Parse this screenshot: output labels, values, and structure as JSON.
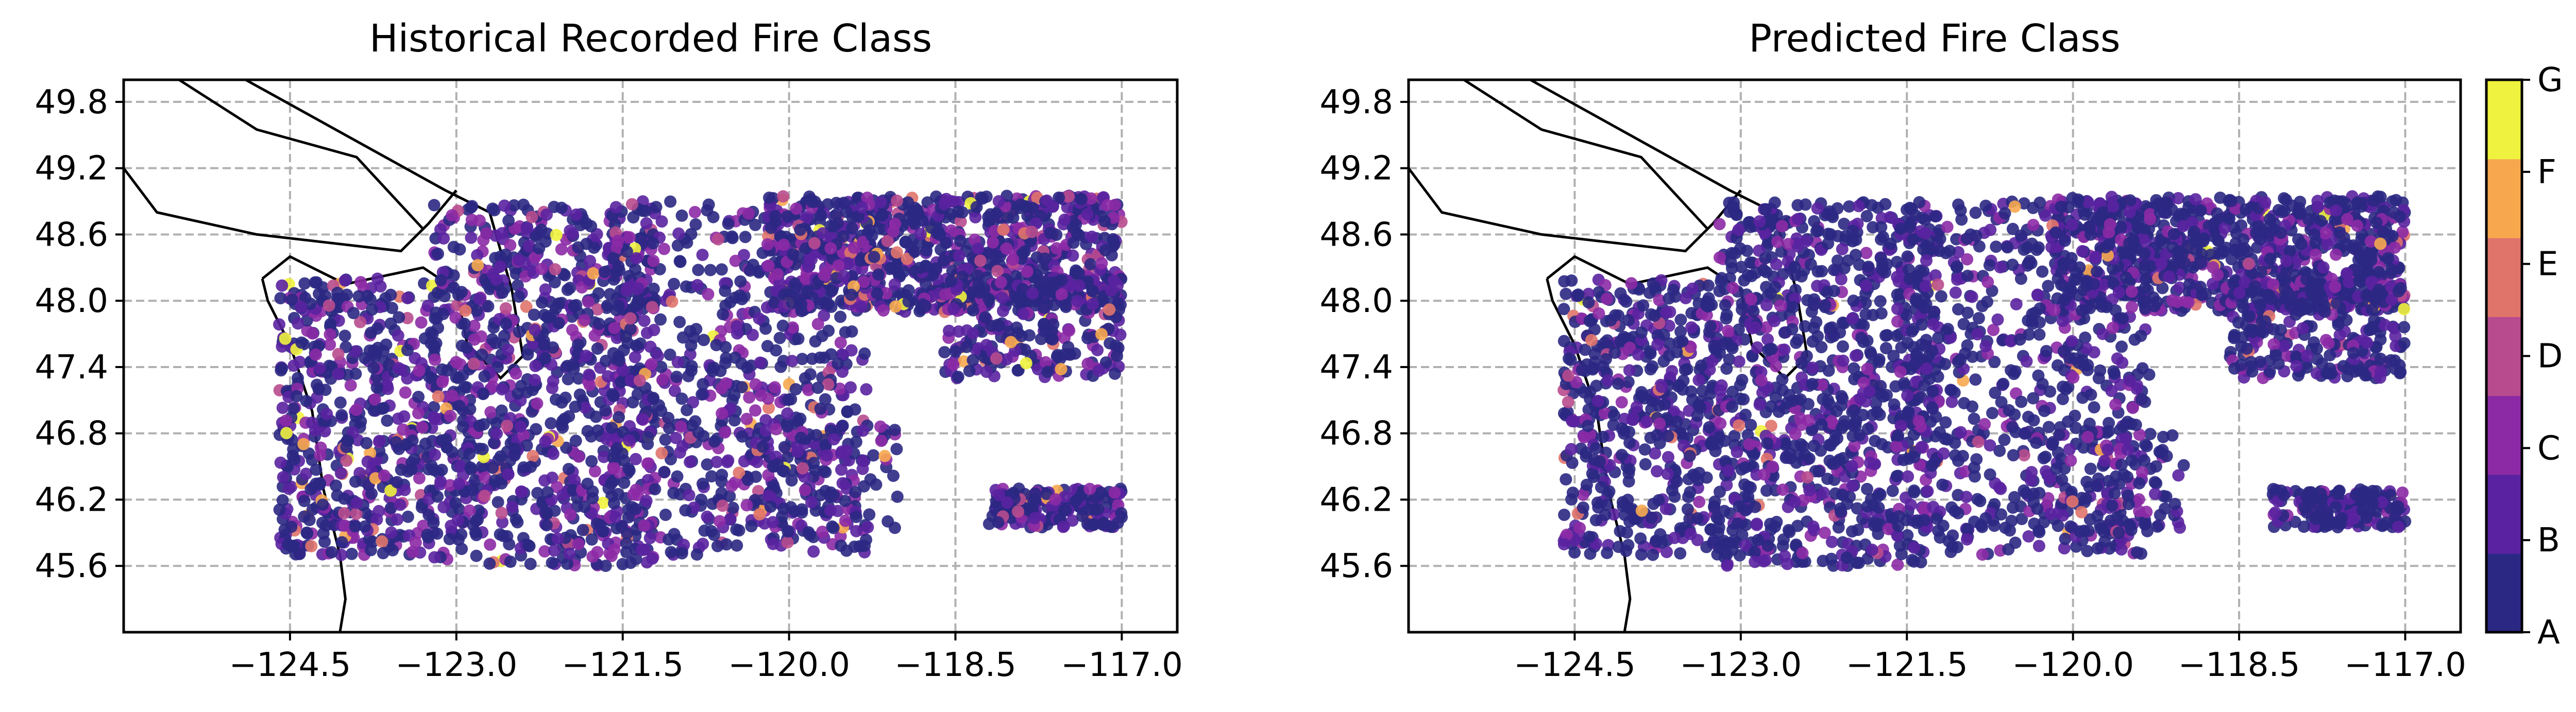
{
  "chart_data": [
    {
      "type": "scatter",
      "title": "Historical Recorded Fire Class",
      "xlabel": "",
      "ylabel": "",
      "xlim": [
        -126.0,
        -116.5
      ],
      "ylim": [
        45.0,
        50.0
      ],
      "xticks": [
        -124.5,
        -123.0,
        -121.5,
        -120.0,
        -118.5,
        -117.0
      ],
      "xtick_labels": [
        "−124.5",
        "−123.0",
        "−121.5",
        "−120.0",
        "−118.5",
        "−117.0"
      ],
      "yticks": [
        45.6,
        46.2,
        46.8,
        47.4,
        48.0,
        48.6,
        49.2,
        49.8
      ],
      "ytick_labels": [
        "45.6",
        "46.2",
        "46.8",
        "47.4",
        "48.0",
        "48.6",
        "49.2",
        "49.8"
      ],
      "grid": true,
      "grid_style": "dashed",
      "projection": "lat-lon map with coastline and border outlines",
      "color_by": "fire class (A–G)",
      "note": "Point cloud of wildfire locations in the Pacific Northwest; most points class A–C, larger classes (D–G) scattered in the eastern/central region."
    },
    {
      "type": "scatter",
      "title": "Predicted Fire Class",
      "xlabel": "",
      "ylabel": "",
      "xlim": [
        -126.0,
        -116.5
      ],
      "ylim": [
        45.0,
        50.0
      ],
      "xticks": [
        -124.5,
        -123.0,
        -121.5,
        -120.0,
        -118.5,
        -117.0
      ],
      "xtick_labels": [
        "−124.5",
        "−123.0",
        "−121.5",
        "−120.0",
        "−118.5",
        "−117.0"
      ],
      "yticks": [
        45.6,
        46.2,
        46.8,
        47.4,
        48.0,
        48.6,
        49.2,
        49.8
      ],
      "ytick_labels": [
        "45.6",
        "46.2",
        "46.8",
        "47.4",
        "48.0",
        "48.6",
        "49.2",
        "49.8"
      ],
      "grid": true,
      "grid_style": "dashed",
      "projection": "lat-lon map with coastline and border outlines",
      "color_by": "fire class (A–G)",
      "note": "Predictions dominated by classes A–C with very few high classes."
    }
  ],
  "colorbar": {
    "labels": [
      "A",
      "B",
      "C",
      "D",
      "E",
      "F",
      "G"
    ],
    "colors": [
      "#2b2883",
      "#5a22a0",
      "#8c2aa5",
      "#b84b8e",
      "#e0746b",
      "#f7a84f",
      "#eff23e"
    ],
    "placement": "right"
  }
}
